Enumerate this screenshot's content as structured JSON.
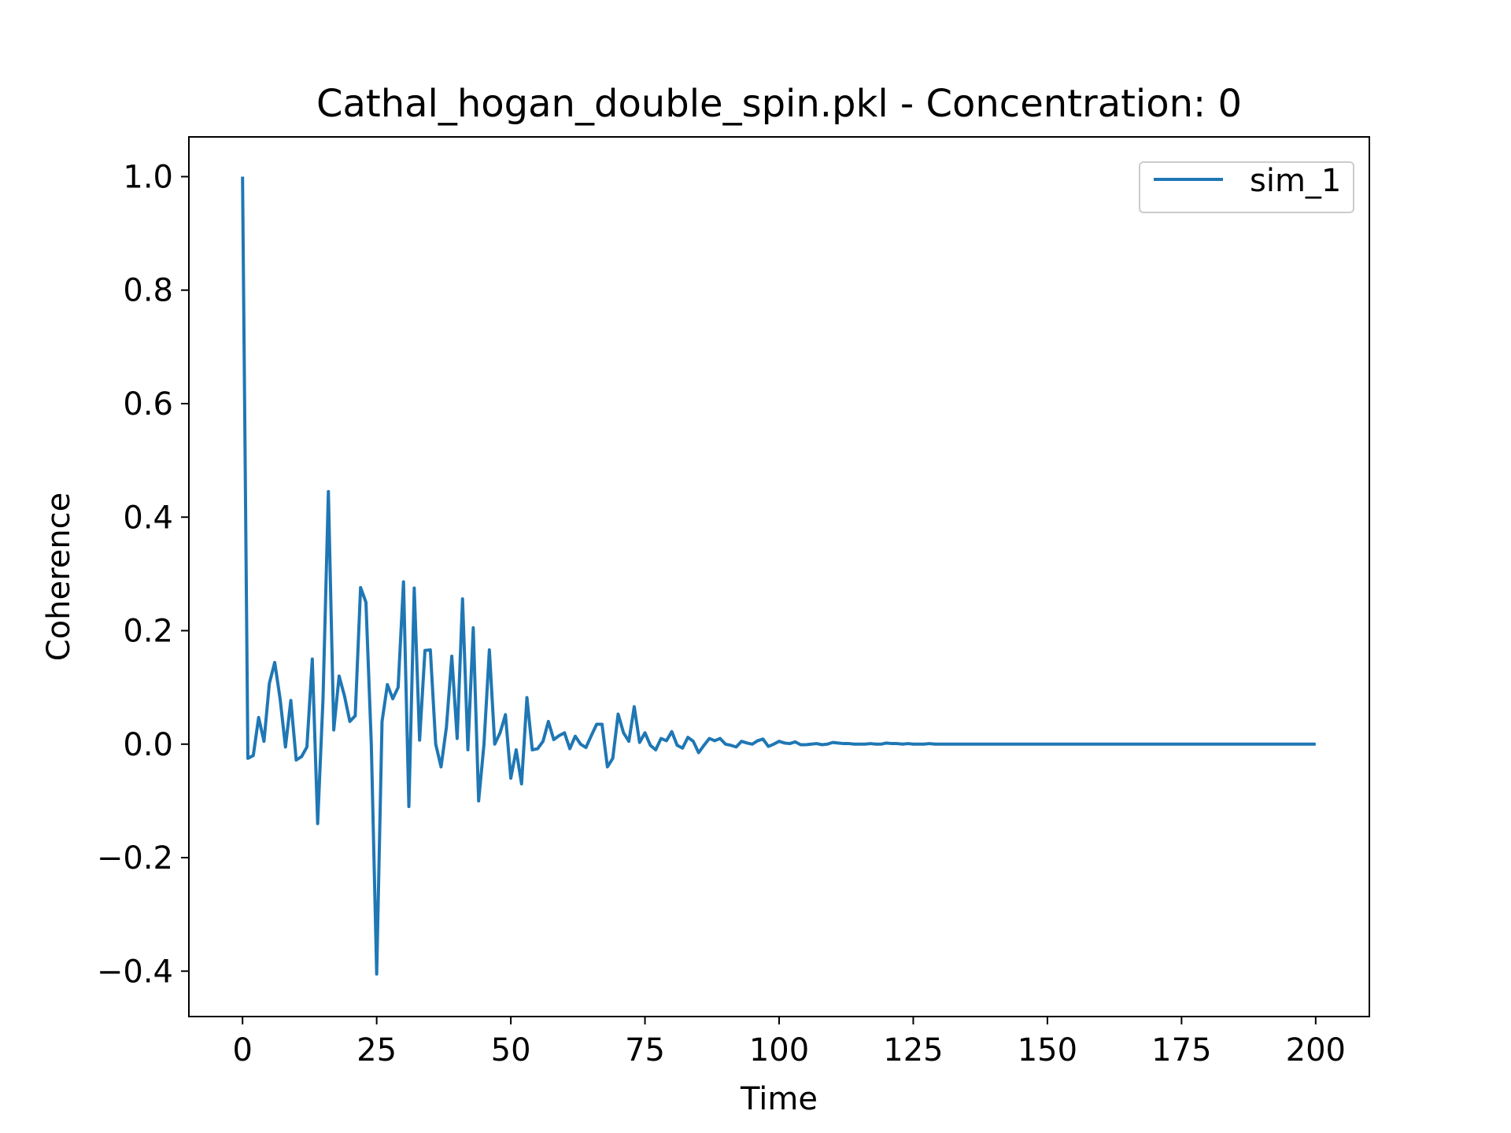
{
  "chart_data": {
    "type": "line",
    "title": "Cathal_hogan_double_spin.pkl - Concentration: 0",
    "xlabel": "Time",
    "ylabel": "Coherence",
    "xlim": [
      -10,
      210
    ],
    "ylim": [
      -0.48,
      1.07
    ],
    "xticks": [
      0,
      25,
      50,
      75,
      100,
      125,
      150,
      175,
      200
    ],
    "xtick_labels": [
      "0",
      "25",
      "50",
      "75",
      "100",
      "125",
      "150",
      "175",
      "200"
    ],
    "yticks": [
      -0.4,
      -0.2,
      0.0,
      0.2,
      0.4,
      0.6,
      0.8,
      1.0
    ],
    "ytick_labels": [
      "−0.4",
      "−0.2",
      "0.0",
      "0.2",
      "0.4",
      "0.6",
      "0.8",
      "1.0"
    ],
    "grid": false,
    "legend_position": "top-right",
    "colors": {
      "series": "#1f77b4",
      "axes": "#000000",
      "background": "#ffffff"
    },
    "series": [
      {
        "name": "sim_1",
        "x": [
          0,
          1,
          2,
          3,
          4,
          5,
          6,
          7,
          8,
          9,
          10,
          11,
          12,
          13,
          14,
          15,
          16,
          17,
          18,
          19,
          20,
          21,
          22,
          23,
          24,
          25,
          26,
          27,
          28,
          29,
          30,
          31,
          32,
          33,
          34,
          35,
          36,
          37,
          38,
          39,
          40,
          41,
          42,
          43,
          44,
          45,
          46,
          47,
          48,
          49,
          50,
          51,
          52,
          53,
          54,
          55,
          56,
          57,
          58,
          59,
          60,
          61,
          62,
          63,
          64,
          65,
          66,
          67,
          68,
          69,
          70,
          71,
          72,
          73,
          74,
          75,
          76,
          77,
          78,
          79,
          80,
          81,
          82,
          83,
          84,
          85,
          86,
          87,
          88,
          89,
          90,
          91,
          92,
          93,
          94,
          95,
          96,
          97,
          98,
          99,
          100,
          101,
          102,
          103,
          104,
          105,
          106,
          107,
          108,
          109,
          110,
          111,
          112,
          113,
          114,
          115,
          116,
          117,
          118,
          119,
          120,
          121,
          122,
          123,
          124,
          125,
          126,
          127,
          128,
          129,
          130,
          135,
          140,
          145,
          150,
          155,
          160,
          165,
          170,
          175,
          180,
          185,
          190,
          195,
          200
        ],
        "y": [
          1.0,
          -0.025,
          -0.02,
          0.047,
          0.005,
          0.107,
          0.144,
          0.08,
          -0.005,
          0.077,
          -0.028,
          -0.022,
          -0.005,
          0.15,
          -0.14,
          0.08,
          0.445,
          0.025,
          0.12,
          0.085,
          0.04,
          0.05,
          0.276,
          0.25,
          0.0,
          -0.405,
          0.04,
          0.105,
          0.08,
          0.1,
          0.286,
          -0.11,
          0.275,
          0.007,
          0.165,
          0.166,
          0.0,
          -0.04,
          0.03,
          0.155,
          0.01,
          0.256,
          -0.01,
          0.205,
          -0.1,
          0.0,
          0.166,
          0.0,
          0.02,
          0.052,
          -0.06,
          -0.01,
          -0.07,
          0.082,
          -0.01,
          -0.008,
          0.005,
          0.04,
          0.008,
          0.015,
          0.02,
          -0.008,
          0.014,
          0.0,
          -0.006,
          0.015,
          0.035,
          0.035,
          -0.04,
          -0.025,
          0.053,
          0.02,
          0.005,
          0.066,
          0.003,
          0.02,
          -0.002,
          -0.01,
          0.01,
          0.006,
          0.022,
          -0.002,
          -0.007,
          0.012,
          0.005,
          -0.015,
          -0.002,
          0.01,
          0.006,
          0.01,
          0.0,
          -0.002,
          -0.005,
          0.005,
          0.002,
          0.0,
          0.006,
          0.009,
          -0.004,
          0.0,
          0.005,
          0.002,
          0.001,
          0.004,
          -0.001,
          -0.001,
          0.0,
          0.001,
          -0.001,
          0.0,
          0.003,
          0.002,
          0.001,
          0.001,
          0.0,
          0.0,
          0.0,
          0.001,
          0.0,
          0.0,
          0.002,
          0.001,
          0.001,
          0.0,
          0.001,
          0.0,
          0.0,
          0.0,
          0.001,
          0.0,
          0.0,
          0.0,
          0.0,
          0.0,
          0.0,
          0.0,
          0.0,
          0.0,
          0.0,
          0.0,
          0.0,
          0.0,
          0.0,
          0.0,
          0.0
        ]
      }
    ]
  }
}
